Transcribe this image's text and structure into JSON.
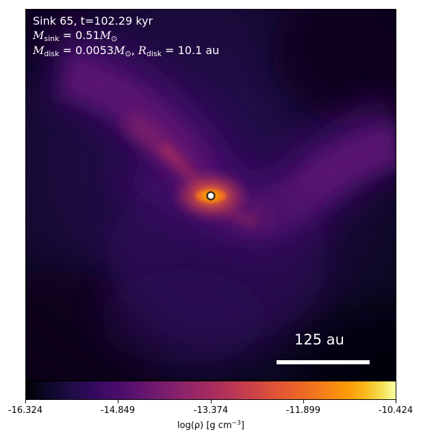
{
  "annotation": {
    "line1": "Sink 65, t=102.29 kyr",
    "mass_sink_label": "M",
    "mass_sink_sub": "sink",
    "mass_sink_value": " = 0.51",
    "mass_unit": "M",
    "mass_unit_sub": "⊙",
    "mass_disk_label": "M",
    "mass_disk_sub": "disk",
    "mass_disk_value": " = 0.0053",
    "radius_label": "R",
    "radius_sub": "disk",
    "radius_value": " = 10.1 au",
    "separator": ", "
  },
  "scale_bar": {
    "label": "125 au"
  },
  "colorbar": {
    "colormap": "inferno",
    "ticks": [
      "-16.324",
      "-14.849",
      "-13.374",
      "-11.899",
      "-10.424"
    ],
    "label_prefix": "log(ρ) [g cm",
    "label_exp": "−3",
    "label_suffix": "]"
  },
  "sink": {
    "marker_fill": "#ffffff",
    "marker_stroke": "#3a2a1a"
  }
}
